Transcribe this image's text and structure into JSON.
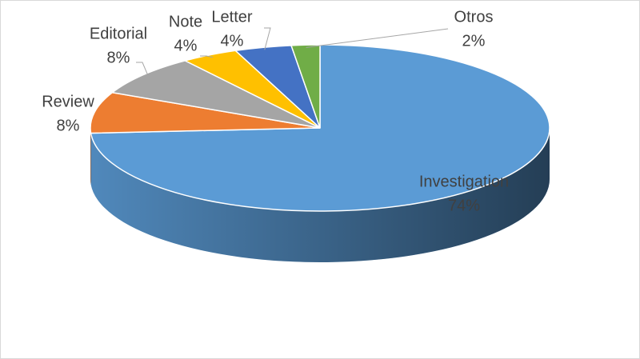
{
  "chart_data": {
    "type": "pie",
    "categories": [
      "Investigation",
      "Review",
      "Editorial",
      "Note",
      "Letter",
      "Otros"
    ],
    "values": [
      74,
      8,
      8,
      4,
      4,
      2
    ],
    "value_labels": [
      "74%",
      "8%",
      "8%",
      "4%",
      "4%",
      "2%"
    ],
    "colors": [
      "#5b9bd5",
      "#ed7d31",
      "#a5a5a5",
      "#ffc000",
      "#4472c4",
      "#70ad47"
    ]
  }
}
